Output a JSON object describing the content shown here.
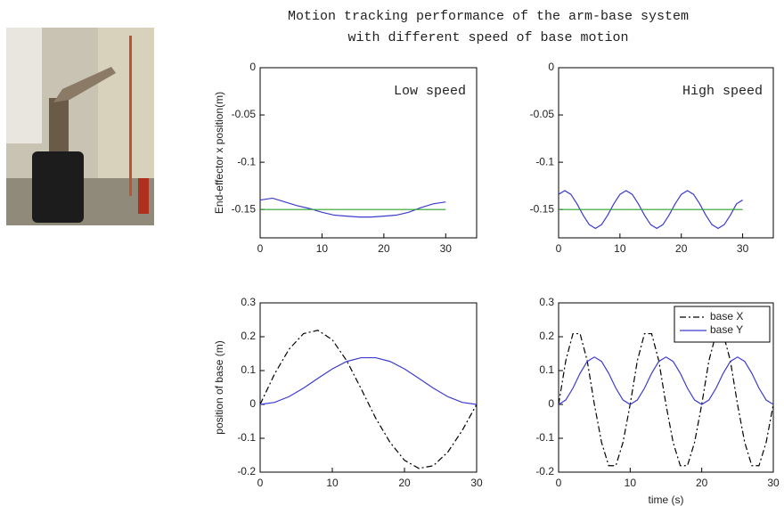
{
  "title": [
    "Motion tracking performance of the arm-base system",
    "with different speed of base motion"
  ],
  "chart_data": [
    {
      "type": "line",
      "annotation": "Low speed",
      "ylabel": "End-effector x position(m)",
      "x": [
        0,
        2,
        4,
        6,
        8,
        10,
        12,
        14,
        16,
        18,
        20,
        22,
        24,
        26,
        28,
        30
      ],
      "series": [
        {
          "color": "#3b3bd0",
          "linestyle": "solid",
          "values": [
            -0.14,
            -0.138,
            -0.142,
            -0.146,
            -0.149,
            -0.153,
            -0.156,
            -0.157,
            -0.158,
            -0.158,
            -0.157,
            -0.156,
            -0.153,
            -0.148,
            -0.144,
            -0.142
          ]
        },
        {
          "color": "#2ca02c",
          "linestyle": "solid",
          "values": [
            -0.15,
            -0.15,
            -0.15,
            -0.15,
            -0.15,
            -0.15,
            -0.15,
            -0.15,
            -0.15,
            -0.15,
            -0.15,
            -0.15,
            -0.15,
            -0.15,
            -0.15,
            -0.15
          ]
        }
      ],
      "xlim": [
        0,
        35
      ],
      "xticks": [
        0,
        10,
        20,
        30
      ],
      "ylim": [
        -0.18,
        0
      ],
      "yticks": [
        0,
        -0.05,
        -0.1,
        -0.15
      ]
    },
    {
      "type": "line",
      "annotation": "High speed",
      "x": [
        0,
        1,
        2,
        3,
        4,
        5,
        6,
        7,
        8,
        9,
        10,
        11,
        12,
        13,
        14,
        15,
        16,
        17,
        18,
        19,
        20,
        21,
        22,
        23,
        24,
        25,
        26,
        27,
        28,
        29,
        30
      ],
      "series": [
        {
          "color": "#3b3bd0",
          "linestyle": "solid",
          "values": [
            -0.134,
            -0.13,
            -0.134,
            -0.144,
            -0.156,
            -0.166,
            -0.17,
            -0.166,
            -0.156,
            -0.144,
            -0.134,
            -0.13,
            -0.134,
            -0.144,
            -0.156,
            -0.166,
            -0.17,
            -0.166,
            -0.156,
            -0.144,
            -0.134,
            -0.13,
            -0.134,
            -0.144,
            -0.156,
            -0.166,
            -0.17,
            -0.166,
            -0.156,
            -0.144,
            -0.14
          ]
        },
        {
          "color": "#2ca02c",
          "linestyle": "solid",
          "values": [
            -0.15,
            -0.15,
            -0.15,
            -0.15,
            -0.15,
            -0.15,
            -0.15,
            -0.15,
            -0.15,
            -0.15,
            -0.15,
            -0.15,
            -0.15,
            -0.15,
            -0.15,
            -0.15,
            -0.15,
            -0.15,
            -0.15,
            -0.15,
            -0.15,
            -0.15,
            -0.15,
            -0.15,
            -0.15,
            -0.15,
            -0.15,
            -0.15,
            -0.15,
            -0.15,
            -0.15
          ]
        }
      ],
      "xlim": [
        0,
        35
      ],
      "xticks": [
        0,
        10,
        20,
        30
      ],
      "ylim": [
        -0.18,
        0
      ],
      "yticks": [
        0,
        -0.05,
        -0.1,
        -0.15
      ]
    },
    {
      "type": "line",
      "ylabel": "position of base (m)",
      "x": [
        0,
        2,
        4,
        6,
        8,
        10,
        12,
        14,
        16,
        18,
        20,
        22,
        24,
        26,
        28,
        30
      ],
      "series": [
        {
          "color": "#000000",
          "linestyle": "dashdot",
          "values": [
            0,
            0.09,
            0.163,
            0.209,
            0.219,
            0.191,
            0.129,
            0.046,
            -0.04,
            -0.112,
            -0.165,
            -0.189,
            -0.181,
            -0.141,
            -0.077,
            0
          ]
        },
        {
          "color": "#3b3bd0",
          "linestyle": "solid",
          "values": [
            0,
            0.006,
            0.023,
            0.048,
            0.077,
            0.105,
            0.127,
            0.138,
            0.138,
            0.127,
            0.105,
            0.077,
            0.048,
            0.023,
            0.006,
            0
          ]
        }
      ],
      "xlim": [
        0,
        30
      ],
      "xticks": [
        0,
        10,
        20,
        30
      ],
      "ylim": [
        -0.2,
        0.3
      ],
      "yticks": [
        -0.2,
        -0.1,
        0,
        0.1,
        0.2,
        0.3
      ]
    },
    {
      "type": "line",
      "xlabel": "time (s)",
      "legend": "upper right",
      "x": [
        0,
        1,
        2,
        3,
        4,
        5,
        6,
        7,
        8,
        9,
        10,
        11,
        12,
        13,
        14,
        15,
        16,
        17,
        18,
        19,
        20,
        21,
        22,
        23,
        24,
        25,
        26,
        27,
        28,
        29,
        30
      ],
      "series": [
        {
          "name": "base X",
          "color": "#000000",
          "linestyle": "dashdot",
          "values": [
            0,
            0.129,
            0.209,
            0.209,
            0.129,
            0,
            -0.112,
            -0.181,
            -0.181,
            -0.112,
            0,
            0.129,
            0.209,
            0.209,
            0.129,
            0,
            -0.112,
            -0.181,
            -0.181,
            -0.112,
            0,
            0.129,
            0.209,
            0.209,
            0.129,
            0,
            -0.112,
            -0.181,
            -0.181,
            -0.112,
            0
          ]
        },
        {
          "name": "base Y",
          "color": "#3b3bd0",
          "linestyle": "solid",
          "values": [
            0,
            0.013,
            0.048,
            0.092,
            0.127,
            0.14,
            0.127,
            0.092,
            0.048,
            0.013,
            0,
            0.013,
            0.048,
            0.092,
            0.127,
            0.14,
            0.127,
            0.092,
            0.048,
            0.013,
            0,
            0.013,
            0.048,
            0.092,
            0.127,
            0.14,
            0.127,
            0.092,
            0.048,
            0.013,
            0
          ]
        }
      ],
      "xlim": [
        0,
        30
      ],
      "xticks": [
        0,
        10,
        20,
        30
      ],
      "ylim": [
        -0.2,
        0.3
      ],
      "yticks": [
        -0.2,
        -0.1,
        0,
        0.1,
        0.2,
        0.3
      ]
    }
  ]
}
